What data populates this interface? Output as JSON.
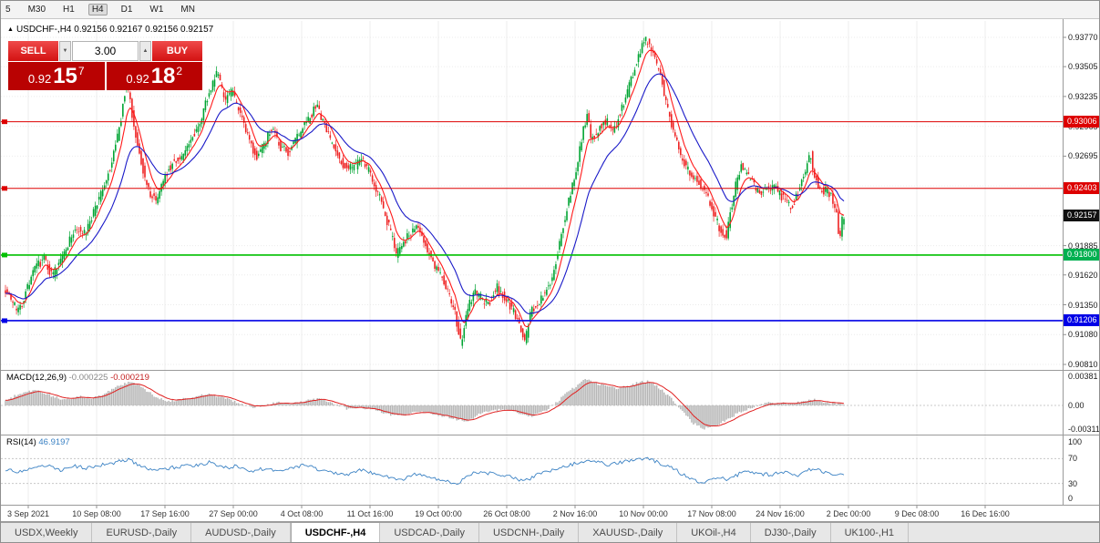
{
  "toolbar": {
    "timeframes": [
      "5",
      "M30",
      "H1",
      "H4",
      "D1",
      "W1",
      "MN"
    ],
    "active": "H4"
  },
  "header": {
    "direction_icon": "▲",
    "symbol": "USDCHF-,H4",
    "ohlc": "0.92156 0.92167 0.92156 0.92157"
  },
  "trade_panel": {
    "sell_label": "SELL",
    "buy_label": "BUY",
    "volume": "3.00",
    "spin_down_icon": "▼",
    "spin_up_icon": "▲",
    "sell_price": {
      "base": "0.92",
      "pips": "15",
      "point": "7"
    },
    "buy_price": {
      "base": "0.92",
      "pips": "18",
      "point": "2"
    }
  },
  "price_axis": {
    "ticks": [
      "0.93770",
      "0.93505",
      "0.93235",
      "0.92965",
      "0.92695",
      "0.92425",
      "0.92155",
      "0.91885",
      "0.91620",
      "0.91350",
      "0.91080",
      "0.90810"
    ],
    "badges": [
      {
        "text": "0.93006",
        "color": "#dd0000"
      },
      {
        "text": "0.92403",
        "color": "#dd0000"
      },
      {
        "text": "0.92157",
        "color": "#111111"
      },
      {
        "text": "0.91800",
        "color": "#00b050"
      },
      {
        "text": "0.91206",
        "color": "#0000e6"
      }
    ]
  },
  "indicators": {
    "macd": {
      "name": "MACD(12,26,9)",
      "value_main": "-0.000225",
      "value_signal": "-0.000219",
      "axis": [
        "0.00381",
        "0.00",
        "-0.00311"
      ]
    },
    "rsi": {
      "name": "RSI(14)",
      "value": "46.9197",
      "axis": [
        "100",
        "70",
        "30",
        "0"
      ]
    }
  },
  "time_axis": {
    "labels": [
      "3 Sep 2021",
      "10 Sep 08:00",
      "17 Sep 16:00",
      "27 Sep 00:00",
      "4 Oct 08:00",
      "11 Oct 16:00",
      "19 Oct 00:00",
      "26 Oct 08:00",
      "2 Nov 16:00",
      "10 Nov 00:00",
      "17 Nov 08:00",
      "24 Nov 16:00",
      "2 Dec 00:00",
      "9 Dec 08:00",
      "16 Dec 16:00"
    ]
  },
  "tabs": {
    "items": [
      "USDX,Weekly",
      "EURUSD-,Daily",
      "AUDUSD-,Daily",
      "USDCHF-,H4",
      "USDCAD-,Daily",
      "USDCNH-,Daily",
      "XAUUSD-,Daily",
      "UKOil-,H4",
      "DJ30-,Daily",
      "UK100-,H1"
    ],
    "active": "USDCHF-,H4"
  },
  "chart_data": {
    "type": "candlestick",
    "symbol": "USDCHF-",
    "timeframe": "H4",
    "current": {
      "open": "0.92156",
      "high": "0.92167",
      "low": "0.92156",
      "close": "0.92157",
      "bid": "0.92157",
      "ask": "0.92182"
    },
    "ylim": [
      0.9081,
      0.9377
    ],
    "x_labels": [
      "3 Sep 2021",
      "10 Sep 08:00",
      "17 Sep 16:00",
      "27 Sep 00:00",
      "4 Oct 08:00",
      "11 Oct 16:00",
      "19 Oct 00:00",
      "26 Oct 08:00",
      "2 Nov 16:00",
      "10 Nov 00:00",
      "17 Nov 08:00",
      "24 Nov 16:00",
      "2 Dec 00:00",
      "9 Dec 08:00",
      "16 Dec 16:00"
    ],
    "levels": [
      {
        "price": 0.93006,
        "color": "#dd0000",
        "width": 1
      },
      {
        "price": 0.92403,
        "color": "#dd0000",
        "width": 1
      },
      {
        "price": 0.918,
        "color": "#00c000",
        "width": 1.6
      },
      {
        "price": 0.91206,
        "color": "#0000e6",
        "width": 1.6
      }
    ],
    "price_path": [
      [
        5,
        0.9152
      ],
      [
        14,
        0.9138
      ],
      [
        22,
        0.9128
      ],
      [
        30,
        0.915
      ],
      [
        40,
        0.9168
      ],
      [
        50,
        0.9178
      ],
      [
        58,
        0.916
      ],
      [
        66,
        0.9172
      ],
      [
        75,
        0.919
      ],
      [
        85,
        0.9205
      ],
      [
        95,
        0.9198
      ],
      [
        105,
        0.9222
      ],
      [
        115,
        0.924
      ],
      [
        125,
        0.9268
      ],
      [
        133,
        0.9298
      ],
      [
        140,
        0.934
      ],
      [
        147,
        0.9302
      ],
      [
        155,
        0.9268
      ],
      [
        163,
        0.924
      ],
      [
        172,
        0.9228
      ],
      [
        182,
        0.9252
      ],
      [
        192,
        0.9265
      ],
      [
        202,
        0.927
      ],
      [
        212,
        0.9285
      ],
      [
        222,
        0.9305
      ],
      [
        232,
        0.933
      ],
      [
        240,
        0.9348
      ],
      [
        248,
        0.9318
      ],
      [
        256,
        0.933
      ],
      [
        264,
        0.9308
      ],
      [
        272,
        0.9288
      ],
      [
        282,
        0.9268
      ],
      [
        292,
        0.9282
      ],
      [
        300,
        0.9298
      ],
      [
        308,
        0.9278
      ],
      [
        318,
        0.9272
      ],
      [
        328,
        0.9288
      ],
      [
        338,
        0.93
      ],
      [
        348,
        0.9315
      ],
      [
        358,
        0.9295
      ],
      [
        368,
        0.9275
      ],
      [
        378,
        0.9262
      ],
      [
        388,
        0.9258
      ],
      [
        398,
        0.9268
      ],
      [
        408,
        0.9252
      ],
      [
        418,
        0.9232
      ],
      [
        428,
        0.9205
      ],
      [
        436,
        0.918
      ],
      [
        444,
        0.9192
      ],
      [
        452,
        0.92
      ],
      [
        460,
        0.9208
      ],
      [
        468,
        0.9188
      ],
      [
        476,
        0.9172
      ],
      [
        484,
        0.9162
      ],
      [
        492,
        0.9148
      ],
      [
        500,
        0.9128
      ],
      [
        507,
        0.9098
      ],
      [
        514,
        0.9132
      ],
      [
        522,
        0.9148
      ],
      [
        530,
        0.914
      ],
      [
        538,
        0.9136
      ],
      [
        546,
        0.9152
      ],
      [
        554,
        0.9142
      ],
      [
        562,
        0.9132
      ],
      [
        570,
        0.912
      ],
      [
        577,
        0.9102
      ],
      [
        584,
        0.913
      ],
      [
        592,
        0.9138
      ],
      [
        600,
        0.9148
      ],
      [
        608,
        0.9162
      ],
      [
        616,
        0.9196
      ],
      [
        624,
        0.9225
      ],
      [
        632,
        0.9252
      ],
      [
        640,
        0.9288
      ],
      [
        645,
        0.9308
      ],
      [
        650,
        0.9282
      ],
      [
        658,
        0.9295
      ],
      [
        666,
        0.9302
      ],
      [
        674,
        0.9292
      ],
      [
        682,
        0.931
      ],
      [
        690,
        0.9328
      ],
      [
        698,
        0.9352
      ],
      [
        706,
        0.9372
      ],
      [
        712,
        0.9375
      ],
      [
        718,
        0.9362
      ],
      [
        726,
        0.9342
      ],
      [
        734,
        0.931
      ],
      [
        742,
        0.9285
      ],
      [
        750,
        0.9265
      ],
      [
        758,
        0.9255
      ],
      [
        766,
        0.9248
      ],
      [
        774,
        0.9238
      ],
      [
        782,
        0.9222
      ],
      [
        790,
        0.9205
      ],
      [
        798,
        0.9198
      ],
      [
        806,
        0.9235
      ],
      [
        814,
        0.9262
      ],
      [
        822,
        0.9252
      ],
      [
        830,
        0.924
      ],
      [
        838,
        0.9238
      ],
      [
        846,
        0.9242
      ],
      [
        854,
        0.9238
      ],
      [
        862,
        0.923
      ],
      [
        870,
        0.9224
      ],
      [
        878,
        0.9238
      ],
      [
        886,
        0.9262
      ],
      [
        890,
        0.9275
      ],
      [
        894,
        0.9252
      ],
      [
        900,
        0.9242
      ],
      [
        906,
        0.9238
      ],
      [
        912,
        0.9236
      ],
      [
        918,
        0.9222
      ],
      [
        922,
        0.9195
      ],
      [
        926,
        0.9216
      ]
    ],
    "macd_range": [
      -0.00311,
      0.00381
    ],
    "macd_path": [
      [
        5,
        0.0006
      ],
      [
        20,
        0.0014
      ],
      [
        40,
        0.0019
      ],
      [
        55,
        0.0012
      ],
      [
        70,
        0.0007
      ],
      [
        85,
        0.0011
      ],
      [
        100,
        0.0009
      ],
      [
        115,
        0.0015
      ],
      [
        130,
        0.0024
      ],
      [
        142,
        0.0029
      ],
      [
        155,
        0.0022
      ],
      [
        170,
        0.001
      ],
      [
        185,
        0.0005
      ],
      [
        200,
        0.0008
      ],
      [
        215,
        0.0011
      ],
      [
        230,
        0.0014
      ],
      [
        245,
        0.0009
      ],
      [
        260,
        0.0003
      ],
      [
        275,
        -0.0003
      ],
      [
        290,
        0.0001
      ],
      [
        305,
        0.0004
      ],
      [
        320,
        0.0002
      ],
      [
        335,
        0.0006
      ],
      [
        350,
        0.0008
      ],
      [
        365,
        0.0002
      ],
      [
        380,
        -0.0004
      ],
      [
        395,
        -0.0002
      ],
      [
        410,
        -0.0006
      ],
      [
        425,
        -0.0011
      ],
      [
        440,
        -0.0013
      ],
      [
        455,
        -0.0007
      ],
      [
        470,
        -0.0009
      ],
      [
        485,
        -0.0013
      ],
      [
        500,
        -0.0017
      ],
      [
        512,
        -0.0019
      ],
      [
        525,
        -0.0011
      ],
      [
        540,
        -0.0006
      ],
      [
        555,
        -0.0005
      ],
      [
        570,
        -0.001
      ],
      [
        582,
        -0.0013
      ],
      [
        595,
        -0.0008
      ],
      [
        608,
        0.0002
      ],
      [
        620,
        0.0014
      ],
      [
        632,
        0.0024
      ],
      [
        642,
        0.0032
      ],
      [
        652,
        0.0028
      ],
      [
        664,
        0.0023
      ],
      [
        676,
        0.0021
      ],
      [
        688,
        0.0024
      ],
      [
        700,
        0.0028
      ],
      [
        712,
        0.003
      ],
      [
        724,
        0.002
      ],
      [
        736,
        0.0008
      ],
      [
        748,
        -0.0008
      ],
      [
        760,
        -0.0022
      ],
      [
        772,
        -0.0028
      ],
      [
        784,
        -0.0025
      ],
      [
        796,
        -0.0018
      ],
      [
        808,
        -0.001
      ],
      [
        820,
        -0.0004
      ],
      [
        832,
        0.0001
      ],
      [
        844,
        0.0004
      ],
      [
        856,
        0.0003
      ],
      [
        868,
        0.0002
      ],
      [
        880,
        0.0005
      ],
      [
        890,
        0.0008
      ],
      [
        900,
        0.0005
      ],
      [
        910,
        0.0003
      ],
      [
        918,
        0.0002
      ],
      [
        926,
        0.0001
      ]
    ],
    "rsi_levels": [
      30,
      70
    ],
    "rsi_path": [
      [
        5,
        52
      ],
      [
        20,
        48
      ],
      [
        35,
        55
      ],
      [
        50,
        60
      ],
      [
        65,
        52
      ],
      [
        80,
        58
      ],
      [
        95,
        55
      ],
      [
        110,
        60
      ],
      [
        125,
        64
      ],
      [
        140,
        68
      ],
      [
        155,
        58
      ],
      [
        170,
        50
      ],
      [
        185,
        55
      ],
      [
        200,
        58
      ],
      [
        215,
        60
      ],
      [
        230,
        64
      ],
      [
        245,
        55
      ],
      [
        260,
        58
      ],
      [
        275,
        48
      ],
      [
        290,
        55
      ],
      [
        305,
        50
      ],
      [
        320,
        55
      ],
      [
        335,
        60
      ],
      [
        350,
        52
      ],
      [
        365,
        48
      ],
      [
        380,
        45
      ],
      [
        395,
        52
      ],
      [
        410,
        46
      ],
      [
        425,
        40
      ],
      [
        440,
        36
      ],
      [
        455,
        45
      ],
      [
        470,
        40
      ],
      [
        485,
        36
      ],
      [
        500,
        30
      ],
      [
        515,
        45
      ],
      [
        530,
        48
      ],
      [
        545,
        44
      ],
      [
        560,
        40
      ],
      [
        575,
        34
      ],
      [
        590,
        45
      ],
      [
        605,
        52
      ],
      [
        620,
        58
      ],
      [
        635,
        64
      ],
      [
        650,
        68
      ],
      [
        665,
        60
      ],
      [
        680,
        64
      ],
      [
        695,
        68
      ],
      [
        710,
        70
      ],
      [
        725,
        62
      ],
      [
        740,
        52
      ],
      [
        755,
        38
      ],
      [
        770,
        30
      ],
      [
        785,
        40
      ],
      [
        800,
        36
      ],
      [
        815,
        50
      ],
      [
        830,
        46
      ],
      [
        845,
        44
      ],
      [
        860,
        48
      ],
      [
        875,
        44
      ],
      [
        890,
        54
      ],
      [
        905,
        48
      ],
      [
        915,
        44
      ],
      [
        926,
        47
      ]
    ]
  }
}
